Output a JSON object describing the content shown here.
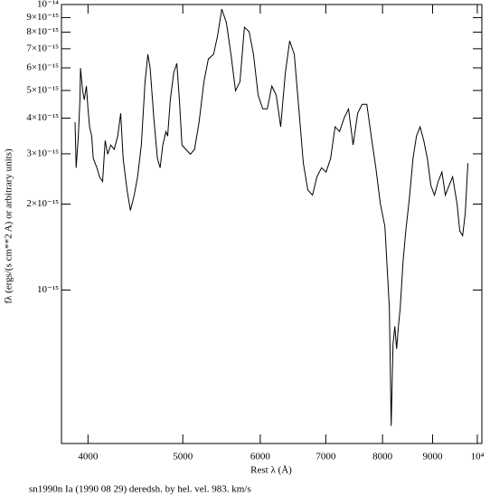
{
  "chart_data": {
    "type": "line",
    "xlabel": "Rest λ (Å)",
    "ylabel": "fλ (ergs/(s cm**2 A) or arbitrary units)",
    "caption": "sn1990n Ia (1990 08 29) deredsh. by hel. vel.   983. km/s",
    "xscale": "log",
    "yscale": "log",
    "color": "#000000",
    "xlim": [
      3758,
      10107
    ],
    "ylim": [
      2.9e-16,
      1e-14
    ],
    "xticks": [
      4000,
      5000,
      6000,
      7000,
      8000,
      9000,
      {
        "value": 10000,
        "label": "10⁴"
      }
    ],
    "yticks": [
      {
        "value": 1e-14,
        "label": "10⁻¹⁴"
      },
      {
        "value": 9e-15,
        "label": "9×10⁻¹⁵"
      },
      {
        "value": 8e-15,
        "label": "8×10⁻¹⁵"
      },
      {
        "value": 7e-15,
        "label": "7×10⁻¹⁵"
      },
      {
        "value": 6e-15,
        "label": "6×10⁻¹⁵"
      },
      {
        "value": 5e-15,
        "label": "5×10⁻¹⁵"
      },
      {
        "value": 4e-15,
        "label": "4×10⁻¹⁵"
      },
      {
        "value": 3e-15,
        "label": "3×10⁻¹⁵"
      },
      {
        "value": 2e-15,
        "label": "2×10⁻¹⁵"
      },
      {
        "value": 1e-15,
        "label": "10⁻¹⁵"
      }
    ],
    "x": [
      3880,
      3890,
      3910,
      3925,
      3930,
      3950,
      3965,
      3985,
      4000,
      4015,
      4035,
      4050,
      4085,
      4110,
      4140,
      4165,
      4190,
      4220,
      4255,
      4290,
      4320,
      4345,
      4385,
      4420,
      4460,
      4495,
      4535,
      4575,
      4605,
      4630,
      4670,
      4710,
      4740,
      4770,
      4805,
      4825,
      4855,
      4895,
      4930,
      4960,
      4990,
      5035,
      5090,
      5140,
      5195,
      5255,
      5310,
      5375,
      5425,
      5480,
      5540,
      5600,
      5660,
      5720,
      5780,
      5845,
      5905,
      5970,
      6035,
      6100,
      6165,
      6230,
      6295,
      6365,
      6430,
      6500,
      6570,
      6640,
      6710,
      6785,
      6855,
      6930,
      7005,
      7080,
      7155,
      7230,
      7310,
      7385,
      7465,
      7545,
      7625,
      7710,
      7790,
      7875,
      7960,
      8045,
      8130,
      8165,
      8200,
      8235,
      8270,
      8305,
      8340,
      8395,
      8450,
      8520,
      8595,
      8665,
      8740,
      8815,
      8890,
      8965,
      9040,
      9120,
      9200,
      9275,
      9355,
      9435,
      9535,
      9595,
      9660,
      9720,
      9780
    ],
    "values": [
      3.87e-15,
      2.68e-15,
      3.46e-15,
      4.64e-15,
      5.99e-15,
      4.99e-15,
      4.64e-15,
      5.18e-15,
      4.31e-15,
      3.73e-15,
      3.46e-15,
      2.89e-15,
      2.68e-15,
      2.49e-15,
      2.4e-15,
      3.34e-15,
      2.99e-15,
      3.22e-15,
      3.11e-15,
      3.46e-15,
      4.16e-15,
      2.89e-15,
      2.24e-15,
      1.9e-15,
      2.15e-15,
      2.49e-15,
      3.22e-15,
      5.37e-15,
      6.69e-15,
      5.99e-15,
      4.01e-15,
      2.89e-15,
      2.68e-15,
      3.22e-15,
      3.59e-15,
      3.46e-15,
      4.64e-15,
      5.78e-15,
      6.22e-15,
      4.64e-15,
      3.22e-15,
      3.11e-15,
      2.99e-15,
      3.11e-15,
      3.87e-15,
      5.37e-15,
      6.45e-15,
      6.69e-15,
      7.74e-15,
      9.64e-15,
      8.64e-15,
      6.69e-15,
      4.99e-15,
      5.37e-15,
      8.33e-15,
      8.03e-15,
      6.69e-15,
      4.81e-15,
      4.31e-15,
      4.31e-15,
      5.18e-15,
      4.81e-15,
      3.73e-15,
      5.78e-15,
      7.46e-15,
      6.69e-15,
      4.31e-15,
      2.78e-15,
      2.24e-15,
      2.15e-15,
      2.49e-15,
      2.68e-15,
      2.59e-15,
      2.89e-15,
      3.73e-15,
      3.59e-15,
      4.01e-15,
      4.31e-15,
      3.22e-15,
      4.16e-15,
      4.47e-15,
      4.47e-15,
      3.46e-15,
      2.68e-15,
      2e-15,
      1.67e-15,
      8.64e-16,
      3.34e-16,
      6.45e-16,
      7.46e-16,
      6.22e-16,
      7.46e-16,
      8.64e-16,
      1.25e-15,
      1.61e-15,
      2.08e-15,
      2.89e-15,
      3.46e-15,
      3.73e-15,
      3.34e-15,
      2.89e-15,
      2.32e-15,
      2.15e-15,
      2.4e-15,
      2.59e-15,
      2.15e-15,
      2.32e-15,
      2.49e-15,
      2e-15,
      1.61e-15,
      1.55e-15,
      1.86e-15,
      2.78e-15
    ]
  }
}
